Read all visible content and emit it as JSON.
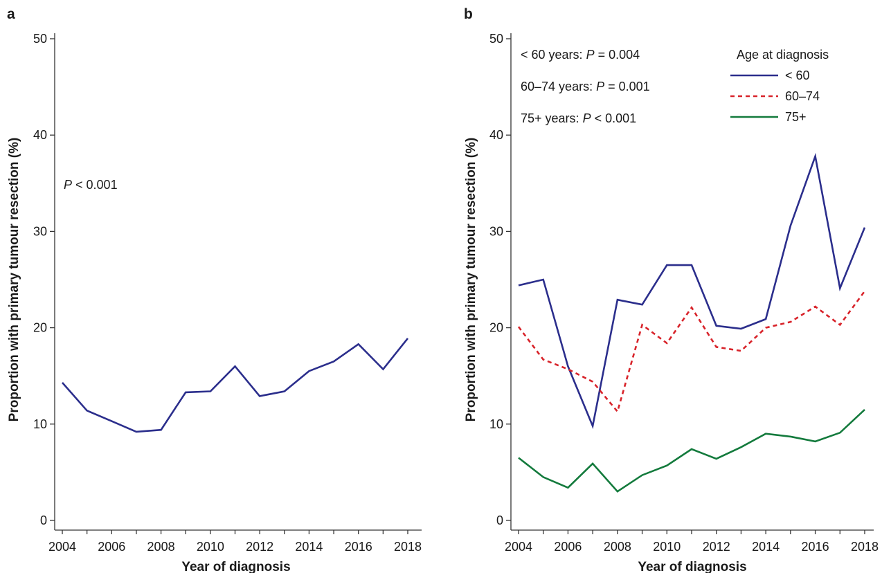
{
  "chart_data": [
    {
      "panel": "a",
      "type": "line",
      "xlabel": "Year of diagnosis",
      "ylabel": "Proportion with primary tumour resection (%)",
      "xlim": [
        2004,
        2018
      ],
      "ylim": [
        0,
        50
      ],
      "x_ticks": [
        "2004",
        "2006",
        "2008",
        "2010",
        "2012",
        "2014",
        "2016",
        "2018"
      ],
      "y_ticks": [
        "0",
        "10",
        "20",
        "30",
        "40",
        "50"
      ],
      "grid": false,
      "annotations": [
        {
          "pre": "",
          "italic": "P",
          "post": " < 0.001"
        }
      ],
      "x": [
        2004,
        2005,
        2006,
        2007,
        2008,
        2009,
        2010,
        2011,
        2012,
        2013,
        2014,
        2015,
        2016,
        2017,
        2018
      ],
      "series": [
        {
          "color": "#2b2e8c",
          "dash": "solid",
          "values": [
            14.3,
            11.4,
            10.3,
            9.2,
            9.4,
            13.3,
            13.4,
            16.0,
            12.9,
            13.4,
            15.5,
            16.5,
            18.3,
            15.7,
            18.9
          ]
        }
      ]
    },
    {
      "panel": "b",
      "type": "line",
      "xlabel": "Year of diagnosis",
      "ylabel": "Proportion with primary tumour resection (%)",
      "xlim": [
        2004,
        2018
      ],
      "ylim": [
        0,
        50
      ],
      "x_ticks": [
        "2004",
        "2006",
        "2008",
        "2010",
        "2012",
        "2014",
        "2016",
        "2018"
      ],
      "y_ticks": [
        "0",
        "10",
        "20",
        "30",
        "40",
        "50"
      ],
      "grid": false,
      "legend_title": "Age at diagnosis",
      "legend_position": "top-right",
      "annotations": [
        {
          "pre": "< 60 years: ",
          "italic": "P",
          "post": " = 0.004"
        },
        {
          "pre": "60–74 years: ",
          "italic": "P",
          "post": " = 0.001"
        },
        {
          "pre": "75+ years: ",
          "italic": "P",
          "post": " < 0.001"
        }
      ],
      "x": [
        2004,
        2005,
        2006,
        2007,
        2008,
        2009,
        2010,
        2011,
        2012,
        2013,
        2014,
        2015,
        2016,
        2017,
        2018
      ],
      "series": [
        {
          "name": "< 60",
          "color": "#2b2e8c",
          "dash": "solid",
          "values": [
            24.4,
            25.0,
            16.0,
            9.8,
            22.9,
            22.4,
            26.5,
            26.5,
            20.2,
            19.9,
            20.9,
            30.6,
            37.8,
            24.1,
            30.4
          ]
        },
        {
          "name": "60–74",
          "color": "#d8232a",
          "dash": "dashed",
          "values": [
            20.1,
            16.7,
            15.7,
            14.4,
            11.3,
            20.3,
            18.4,
            22.1,
            18.0,
            17.6,
            20.0,
            20.6,
            22.2,
            20.3,
            23.8
          ]
        },
        {
          "name": "75+",
          "color": "#137a3c",
          "dash": "solid",
          "values": [
            6.5,
            4.5,
            3.4,
            5.9,
            3.0,
            4.7,
            5.7,
            7.4,
            6.4,
            7.6,
            9.0,
            8.7,
            8.2,
            9.1,
            11.5
          ]
        }
      ]
    }
  ]
}
